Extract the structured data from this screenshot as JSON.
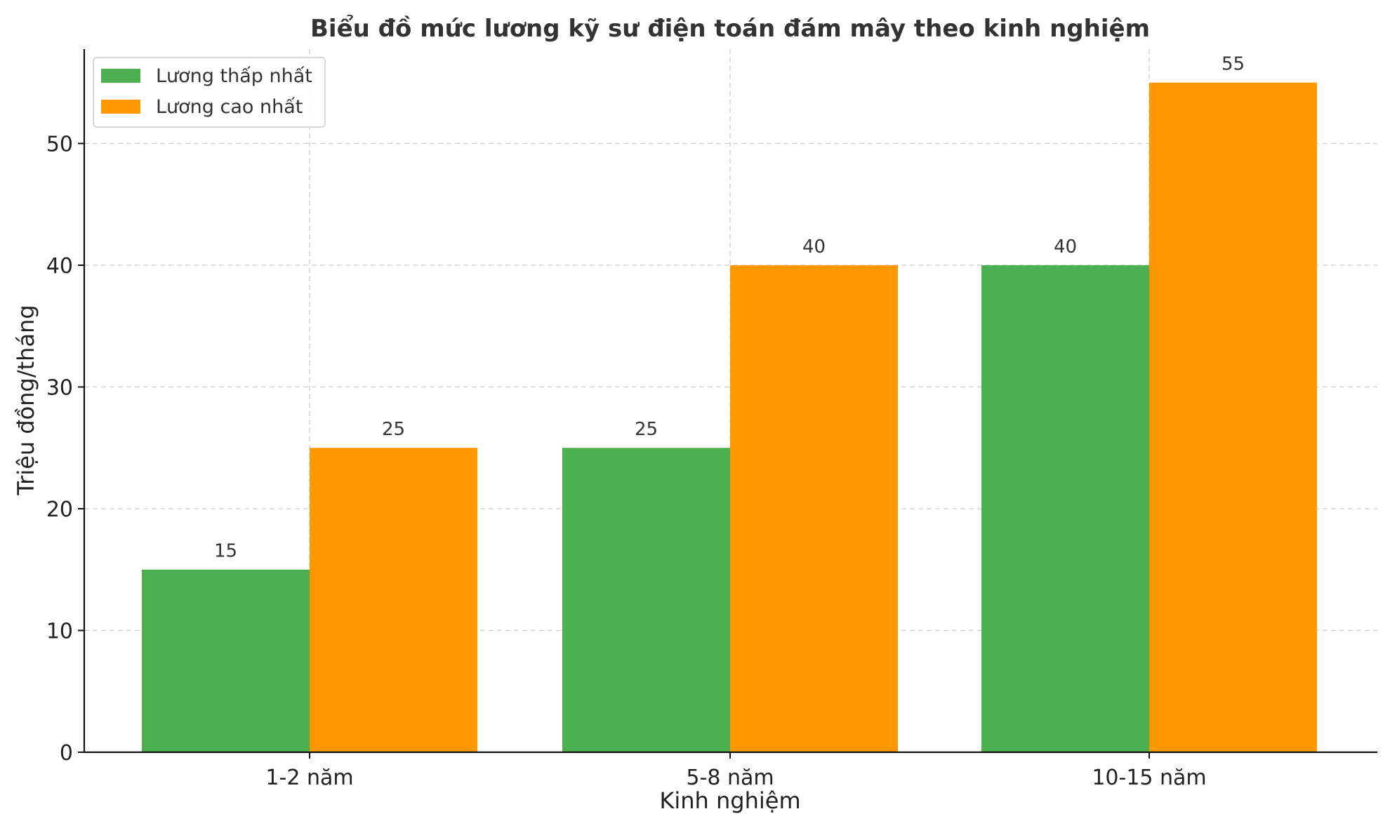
{
  "chart_data": {
    "type": "bar",
    "title": "Biểu đồ mức lương kỹ sư điện toán đám mây theo kinh nghiệm",
    "xlabel": "Kinh nghiệm",
    "ylabel": "Triệu đồng/tháng",
    "categories": [
      "1-2 năm",
      "5-8 năm",
      "10-15 năm"
    ],
    "series": [
      {
        "name": "Lương thấp nhất",
        "values": [
          15,
          25,
          40
        ],
        "color": "#4caf50"
      },
      {
        "name": "Lương cao nhất",
        "values": [
          25,
          40,
          55
        ],
        "color": "#ff9800"
      }
    ],
    "ylim": [
      0,
      57.75
    ],
    "yticks": [
      0,
      10,
      20,
      30,
      40,
      50
    ],
    "grid": true,
    "legend": "top-left"
  }
}
